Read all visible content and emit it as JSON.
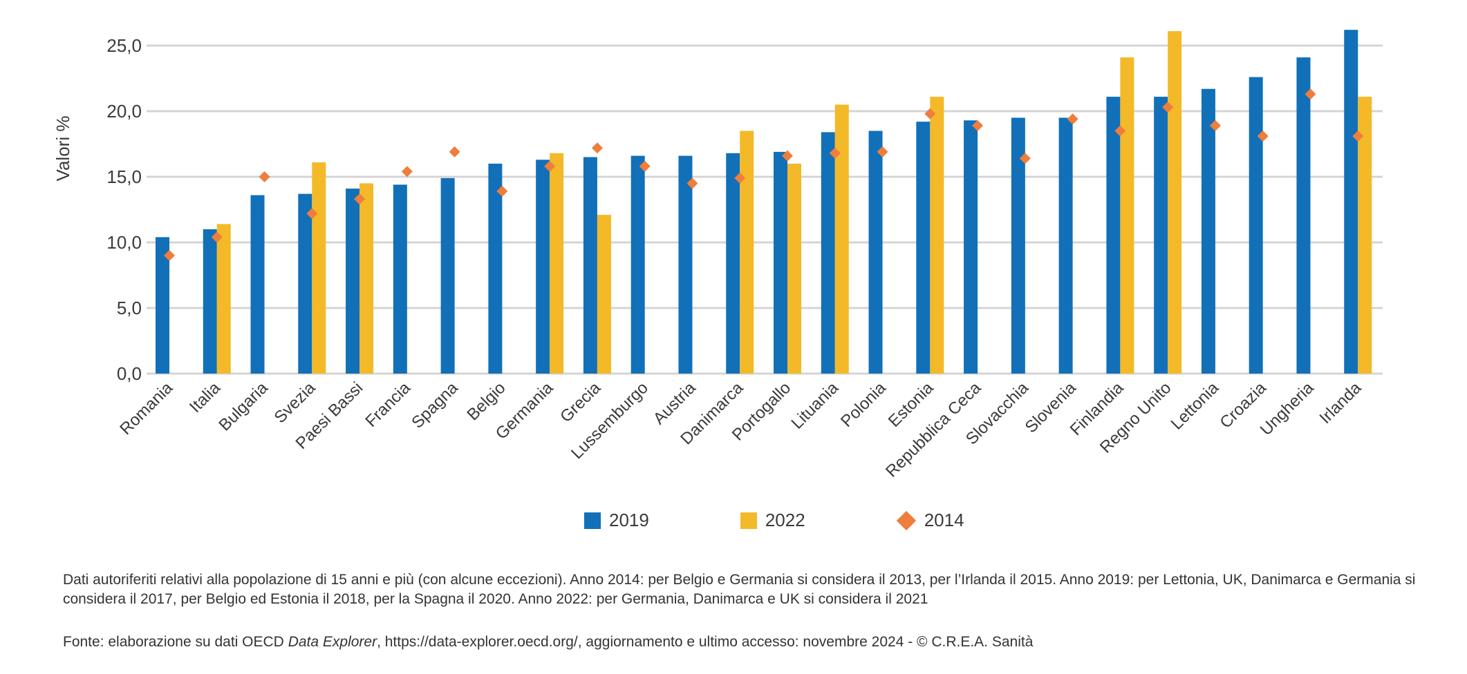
{
  "chart_data": {
    "type": "bar",
    "title": "",
    "xlabel": "",
    "ylabel": "Valori %",
    "ylim": [
      0,
      25
    ],
    "yticks": [
      0,
      5,
      10,
      15,
      20,
      25
    ],
    "ytick_labels": [
      "0,0",
      "5,0",
      "10,0",
      "15,0",
      "20,0",
      "25,0"
    ],
    "grid": true,
    "legend_position": "bottom-center",
    "categories": [
      "Romania",
      "Italia",
      "Bulgaria",
      "Svezia",
      "Paesi Bassi",
      "Francia",
      "Spagna",
      "Belgio",
      "Germania",
      "Grecia",
      "Lussemburgo",
      "Austria",
      "Danimarca",
      "Portogallo",
      "Lituania",
      "Polonia",
      "Estonia",
      "Repubblica Ceca",
      "Slovacchia",
      "Slovenia",
      "Finlandia",
      "Regno Unito",
      "Lettonia",
      "Croazia",
      "Ungheria",
      "Irlanda"
    ],
    "series": [
      {
        "name": "2019",
        "kind": "bar",
        "color": "#1170b8",
        "values": [
          10.4,
          11.0,
          13.6,
          13.7,
          14.1,
          14.4,
          14.9,
          16.0,
          16.3,
          16.5,
          16.6,
          16.6,
          16.8,
          16.9,
          18.4,
          18.5,
          19.2,
          19.3,
          19.5,
          19.5,
          21.1,
          21.1,
          21.7,
          22.6,
          24.1,
          26.2
        ]
      },
      {
        "name": "2022",
        "kind": "bar",
        "color": "#f3b928",
        "values": [
          null,
          11.4,
          null,
          16.1,
          14.5,
          null,
          null,
          null,
          16.8,
          12.1,
          null,
          null,
          18.5,
          16.0,
          20.5,
          null,
          21.1,
          null,
          null,
          null,
          24.1,
          26.1,
          null,
          null,
          null,
          21.1
        ]
      },
      {
        "name": "2014",
        "kind": "marker",
        "marker": "diamond",
        "color": "#ef7d3c",
        "values": [
          9.0,
          10.4,
          15.0,
          12.2,
          13.3,
          15.4,
          16.9,
          13.9,
          15.8,
          17.2,
          15.8,
          14.5,
          14.9,
          16.6,
          16.8,
          16.9,
          19.8,
          18.9,
          16.4,
          19.4,
          18.5,
          20.3,
          18.9,
          18.1,
          21.3,
          18.1
        ]
      }
    ]
  },
  "legend": {
    "items": [
      {
        "label": "2019",
        "color": "#1170b8"
      },
      {
        "label": "2022",
        "color": "#f3b928"
      },
      {
        "label": "2014",
        "color": "#ef7d3c"
      }
    ]
  },
  "notes": {
    "text": "Dati autoriferiti relativi alla popolazione di 15 anni e più (con alcune eccezioni). Anno 2014: per Belgio e Germania si considera il 2013, per l’Irlanda il 2015. Anno 2019: per Lettonia, UK, Danimarca e Germania si considera il 2017, per Belgio ed Estonia il 2018, per la Spagna il 2020. Anno 2022: per Germania, Danimarca e UK si considera il 2021"
  },
  "source": {
    "prefix": "Fonte: elaborazione su dati OECD ",
    "italic": "Data Explorer",
    "suffix": ", https://data-explorer.oecd.org/, aggiornamento e ultimo accesso: novembre 2024 - © C.R.E.A. Sanità"
  }
}
